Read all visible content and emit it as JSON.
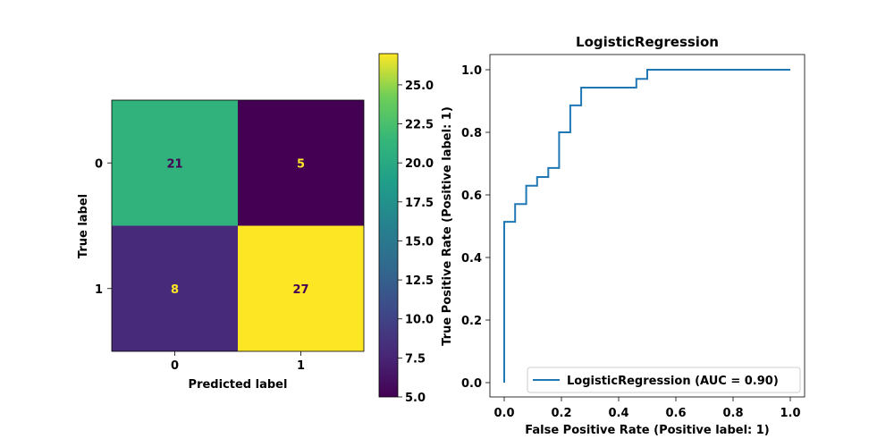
{
  "chart_data": [
    {
      "type": "heatmap",
      "xlabel": "Predicted label",
      "ylabel": "True label",
      "x_tick_labels": [
        "0",
        "1"
      ],
      "y_tick_labels": [
        "0",
        "1"
      ],
      "matrix": [
        [
          21,
          5
        ],
        [
          8,
          27
        ]
      ],
      "colorbar": {
        "colormap": "viridis",
        "range": [
          5,
          27
        ],
        "ticks": [
          "5.0",
          "7.5",
          "10.0",
          "12.5",
          "15.0",
          "17.5",
          "20.0",
          "22.5",
          "25.0"
        ]
      }
    },
    {
      "type": "line",
      "title": "LogisticRegression",
      "xlabel": "False Positive Rate (Positive label: 1)",
      "ylabel": "True Positive Rate (Positive label: 1)",
      "xlim": [
        0.0,
        1.0
      ],
      "ylim": [
        0.0,
        1.0
      ],
      "x_tick_labels": [
        "0.0",
        "0.2",
        "0.4",
        "0.6",
        "0.8",
        "1.0"
      ],
      "y_tick_labels": [
        "0.0",
        "0.2",
        "0.4",
        "0.6",
        "0.8",
        "1.0"
      ],
      "legend_position": "bottom-right",
      "series": [
        {
          "name": "LogisticRegression (AUC = 0.90)",
          "color": "#1f77b4",
          "x": [
            0.0,
            0.0,
            0.038,
            0.038,
            0.077,
            0.077,
            0.115,
            0.115,
            0.154,
            0.154,
            0.192,
            0.192,
            0.231,
            0.231,
            0.269,
            0.269,
            0.462,
            0.462,
            0.5,
            0.5,
            1.0
          ],
          "y": [
            0.0,
            0.514,
            0.514,
            0.571,
            0.571,
            0.629,
            0.629,
            0.657,
            0.657,
            0.686,
            0.686,
            0.8,
            0.8,
            0.886,
            0.886,
            0.943,
            0.943,
            0.971,
            0.971,
            1.0,
            1.0
          ]
        }
      ]
    }
  ]
}
